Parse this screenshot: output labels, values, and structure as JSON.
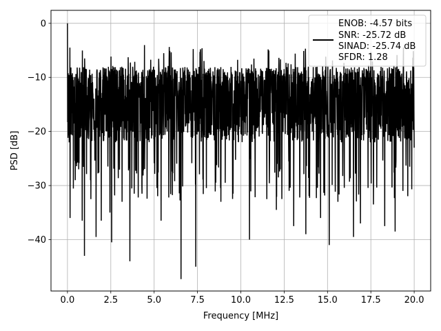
{
  "chart_data": {
    "type": "line",
    "title": "",
    "xlabel": "Frequency [MHz]",
    "ylabel": "PSD [dB]",
    "xlim": [
      -0.95,
      20.95
    ],
    "ylim": [
      -49.5,
      2.4
    ],
    "xticks": [
      0.0,
      2.5,
      5.0,
      7.5,
      10.0,
      12.5,
      15.0,
      17.5,
      20.0
    ],
    "xtick_labels": [
      "0.0",
      "2.5",
      "5.0",
      "7.5",
      "10.0",
      "12.5",
      "15.0",
      "17.5",
      "20.0"
    ],
    "yticks": [
      0,
      -10,
      -20,
      -30,
      -40
    ],
    "ytick_labels": [
      "0",
      "−10",
      "−20",
      "−30",
      "−40"
    ],
    "grid": true,
    "legend": {
      "placement": "top-right",
      "entries": [
        "ENOB: -4.57 bits",
        "SNR: -25.72 dB",
        "SINAD: -25.74 dB",
        "SFDR: 1.28"
      ]
    },
    "series": [
      {
        "color": "#000000",
        "x_range": [
          0.0,
          20.0
        ],
        "num_points": 2000,
        "typical_band": [
          -22,
          -8
        ],
        "points": [
          {
            "x": 0.0,
            "y": 0.0
          },
          {
            "x": 0.05,
            "y": -16.0
          },
          {
            "x": 0.1,
            "y": -22.0
          },
          {
            "x": 0.15,
            "y": -36.0
          },
          {
            "x": 0.25,
            "y": -12.0
          },
          {
            "x": 0.45,
            "y": -29.0
          },
          {
            "x": 0.65,
            "y": -27.0
          },
          {
            "x": 0.85,
            "y": -36.5
          },
          {
            "x": 0.98,
            "y": -43.0
          },
          {
            "x": 1.35,
            "y": -32.5
          },
          {
            "x": 1.65,
            "y": -39.5
          },
          {
            "x": 1.95,
            "y": -36.5
          },
          {
            "x": 2.45,
            "y": -35.0
          },
          {
            "x": 2.55,
            "y": -40.5
          },
          {
            "x": 3.15,
            "y": -33.0
          },
          {
            "x": 3.6,
            "y": -44.0
          },
          {
            "x": 3.85,
            "y": -31.5
          },
          {
            "x": 4.3,
            "y": -31.5
          },
          {
            "x": 5.4,
            "y": -36.5
          },
          {
            "x": 6.55,
            "y": -47.3
          },
          {
            "x": 7.4,
            "y": -45.0
          },
          {
            "x": 8.85,
            "y": -33.0
          },
          {
            "x": 9.1,
            "y": -29.5
          },
          {
            "x": 9.55,
            "y": -31.5
          },
          {
            "x": 10.5,
            "y": -40.0
          },
          {
            "x": 11.5,
            "y": -32.5
          },
          {
            "x": 12.05,
            "y": -34.5
          },
          {
            "x": 13.05,
            "y": -37.5
          },
          {
            "x": 13.75,
            "y": -39.0
          },
          {
            "x": 14.6,
            "y": -36.0
          },
          {
            "x": 15.1,
            "y": -41.0
          },
          {
            "x": 15.6,
            "y": -33.0
          },
          {
            "x": 16.5,
            "y": -39.5
          },
          {
            "x": 16.9,
            "y": -37.0
          },
          {
            "x": 17.65,
            "y": -33.5
          },
          {
            "x": 18.3,
            "y": -37.5
          },
          {
            "x": 18.9,
            "y": -38.5
          },
          {
            "x": 19.35,
            "y": -31.0
          },
          {
            "x": 20.0,
            "y": -23.0
          }
        ]
      }
    ]
  }
}
